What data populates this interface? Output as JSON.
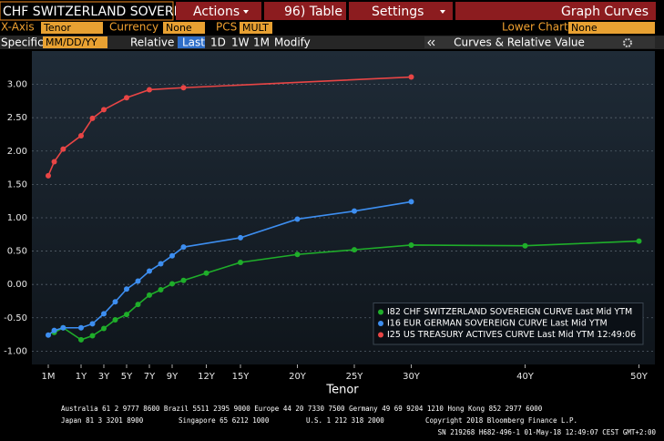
{
  "ui": {
    "toolbar": {
      "security": "CHF SWITZERLAND SOVEREIG",
      "actions": "Actions",
      "table": "96) Table",
      "settings": "Settings",
      "title": "Graph Curves"
    },
    "controls": {
      "xaxis_label": "X-Axis",
      "xaxis_value": "Tenor",
      "currency_label": "Currency",
      "currency_value": "None",
      "pcs_label": "PCS",
      "pcs_value": "MULT",
      "lower_chart_label": "Lower Chart",
      "lower_chart_value": "None",
      "specific_label": "Specific",
      "date_placeholder": "MM/DD/YY",
      "relative_label": "Relative",
      "relative_options": [
        "Last",
        "1D",
        "1W",
        "1M"
      ],
      "modify": "Modify",
      "panel": "Curves & Relative Value"
    },
    "footer": {
      "line1": "Australia 61 2 9777 8600 Brazil 5511 2395 9000 Europe 44 20 7330 7500 Germany 49 69 9204 1210 Hong Kong 852 2977 6000",
      "line2": [
        "Japan 81 3 3201 8900",
        "Singapore 65 6212 1000",
        "U.S. 1 212 318 2000",
        "Copyright 2018 Bloomberg Finance L.P."
      ],
      "line3": "SN 219268 H682-496-1 01-May-18 12:49:07 CEST GMT+2:00"
    }
  },
  "chart_data": {
    "type": "line",
    "xlabel": "Tenor",
    "xlim": [
      0.0833,
      50
    ],
    "xticks": [
      {
        "value": 0.0833,
        "label": "1M"
      },
      {
        "value": 1,
        "label": "1Y"
      },
      {
        "value": 3,
        "label": "3Y"
      },
      {
        "value": 5,
        "label": "5Y"
      },
      {
        "value": 7,
        "label": "7Y"
      },
      {
        "value": 9,
        "label": "9Y"
      },
      {
        "value": 12,
        "label": "12Y"
      },
      {
        "value": 15,
        "label": "15Y"
      },
      {
        "value": 20,
        "label": "20Y"
      },
      {
        "value": 25,
        "label": "25Y"
      },
      {
        "value": 30,
        "label": "30Y"
      },
      {
        "value": 40,
        "label": "40Y"
      },
      {
        "value": 50,
        "label": "50Y"
      }
    ],
    "ylim": [
      -1.2,
      3.5
    ],
    "yticks": [
      {
        "value": 3,
        "label": "3.00"
      },
      {
        "value": 2.5,
        "label": "2.50"
      },
      {
        "value": 2,
        "label": "2.00"
      },
      {
        "value": 1.5,
        "label": "1.50"
      },
      {
        "value": 1,
        "label": "1.00"
      },
      {
        "value": 0.5,
        "label": "0.50"
      },
      {
        "value": 0,
        "label": "0.00"
      },
      {
        "value": -0.5,
        "label": "-0.50"
      },
      {
        "value": -1,
        "label": "-1.00"
      }
    ],
    "grid": true,
    "legend": "bottom-right",
    "series": [
      {
        "name": "I82 CHF SWITZERLAND SOVEREIGN CURVE Last Mid YTM",
        "color": "#1fae2a",
        "x": [
          0.25,
          0.5,
          1,
          2,
          3,
          4,
          5,
          6,
          7,
          8,
          9,
          10,
          12,
          15,
          20,
          25,
          30,
          40,
          50
        ],
        "values": [
          -0.72,
          -0.65,
          -0.83,
          -0.77,
          -0.66,
          -0.53,
          -0.45,
          -0.3,
          -0.16,
          -0.08,
          0.01,
          0.06,
          0.17,
          0.33,
          0.45,
          0.52,
          0.59,
          0.58,
          0.65
        ]
      },
      {
        "name": "I16 EUR GERMAN SOVEREIGN CURVE Last Mid YTM",
        "color": "#3d8ef0",
        "x": [
          0.0833,
          0.25,
          0.5,
          1,
          2,
          3,
          4,
          5,
          6,
          7,
          8,
          9,
          10,
          15,
          20,
          25,
          30
        ],
        "values": [
          -0.76,
          -0.69,
          -0.65,
          -0.65,
          -0.59,
          -0.44,
          -0.26,
          -0.07,
          0.05,
          0.2,
          0.31,
          0.43,
          0.56,
          0.7,
          0.98,
          1.1,
          1.24
        ]
      },
      {
        "name": "I25 US TREASURY ACTIVES CURVE Last Mid YTM 12:49:06",
        "color": "#e84545",
        "x": [
          0.0833,
          0.25,
          0.5,
          1,
          2,
          3,
          5,
          7,
          10,
          30
        ],
        "values": [
          1.63,
          1.84,
          2.03,
          2.23,
          2.49,
          2.62,
          2.8,
          2.92,
          2.95,
          3.11
        ]
      }
    ]
  }
}
